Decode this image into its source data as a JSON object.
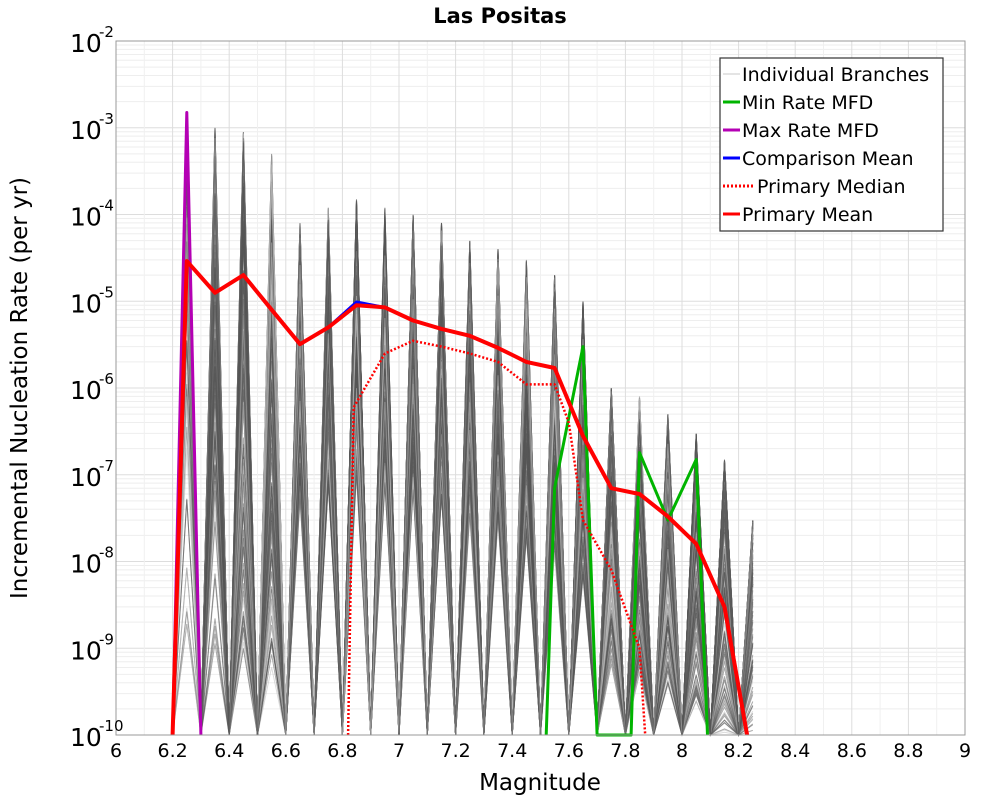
{
  "chart_data": {
    "type": "line",
    "title": "Las Positas",
    "xlabel": "Magnitude",
    "ylabel": "Incremental Nucleation Rate (per yr)",
    "xlim": [
      6,
      9
    ],
    "ylim": [
      1e-10,
      0.01
    ],
    "y_scale": "log",
    "grid": true,
    "legend_position": "top-right",
    "x_ticks": [
      "6",
      "6.2",
      "6.4",
      "6.6",
      "6.8",
      "7",
      "7.2",
      "7.4",
      "7.6",
      "7.8",
      "8",
      "8.2",
      "8.4",
      "8.6",
      "8.8",
      "9"
    ],
    "y_tick_exponents": [
      "-10",
      "-9",
      "-8",
      "-7",
      "-6",
      "-5",
      "-4",
      "-3",
      "-2"
    ],
    "y_tick_base": "10",
    "branch_peaks": {
      "magnitudes": [
        6.25,
        6.35,
        6.45,
        6.55,
        6.65,
        6.75,
        6.85,
        6.95,
        7.05,
        7.15,
        7.25,
        7.35,
        7.45,
        7.55,
        7.65,
        7.75,
        7.85,
        7.95,
        8.05,
        8.15,
        8.25
      ],
      "max_rates": [
        0.0015,
        0.001,
        0.0009,
        0.0005,
        8e-05,
        0.00012,
        0.00015,
        0.00012,
        0.0001,
        8e-05,
        5e-05,
        4e-05,
        3e-05,
        2e-05,
        1e-05,
        1e-06,
        8e-07,
        5e-07,
        3e-07,
        1.5e-07,
        3e-08
      ]
    },
    "series": [
      {
        "name": "Individual Branches",
        "color": "#c8c8c8",
        "style": "solid"
      },
      {
        "name": "Min Rate MFD",
        "color": "#00b400",
        "style": "solid",
        "x": [
          7.52,
          7.55,
          7.65,
          7.7,
          7.82,
          7.85,
          7.95,
          8.05,
          8.09
        ],
        "y": [
          1e-10,
          7e-08,
          3e-06,
          1e-10,
          1e-10,
          1.8e-07,
          3e-08,
          1.5e-07,
          1e-10
        ]
      },
      {
        "name": "Max Rate MFD",
        "color": "#b400b4",
        "style": "solid",
        "x": [
          6.2,
          6.25,
          6.3
        ],
        "y": [
          1e-10,
          0.0015,
          1e-10
        ]
      },
      {
        "name": "Comparison Mean",
        "color": "#0000ff",
        "style": "solid",
        "x": [
          6.2,
          6.25,
          6.35,
          6.45,
          6.55,
          6.65,
          6.75,
          6.85,
          6.95,
          7.05,
          7.15,
          7.25,
          7.35,
          7.45,
          7.55,
          7.65,
          7.75,
          7.85,
          7.95,
          8.05,
          8.15,
          8.23
        ],
        "y": [
          1e-10,
          2.9e-05,
          1.25e-05,
          2e-05,
          8e-06,
          3.2e-06,
          5e-06,
          9.8e-06,
          8.5e-06,
          6e-06,
          4.8e-06,
          4e-06,
          2.9e-06,
          2e-06,
          1.7e-06,
          2.8e-07,
          7e-08,
          6e-08,
          3.3e-08,
          1.6e-08,
          3e-09,
          1e-10
        ]
      },
      {
        "name": "Primary Median",
        "color": "#ff0000",
        "style": "dotted",
        "x": [
          6.82,
          6.84,
          6.95,
          7.05,
          7.15,
          7.25,
          7.35,
          7.45,
          7.55,
          7.6,
          7.65,
          7.75,
          7.85,
          7.87
        ],
        "y": [
          1e-10,
          6e-07,
          2.5e-06,
          3.5e-06,
          3e-06,
          2.5e-06,
          2e-06,
          1.1e-06,
          1.1e-06,
          4e-07,
          3e-08,
          8e-09,
          1e-09,
          1e-10
        ]
      },
      {
        "name": "Primary Mean",
        "color": "#ff0000",
        "style": "solid",
        "x": [
          6.2,
          6.25,
          6.35,
          6.45,
          6.55,
          6.65,
          6.75,
          6.85,
          6.95,
          7.05,
          7.15,
          7.25,
          7.35,
          7.45,
          7.55,
          7.65,
          7.75,
          7.85,
          7.95,
          8.05,
          8.15,
          8.23
        ],
        "y": [
          1e-10,
          2.9e-05,
          1.25e-05,
          2e-05,
          8e-06,
          3.2e-06,
          5e-06,
          9e-06,
          8.5e-06,
          6e-06,
          4.8e-06,
          4e-06,
          2.9e-06,
          2e-06,
          1.7e-06,
          2.8e-07,
          7e-08,
          6e-08,
          3.3e-08,
          1.6e-08,
          3e-09,
          1e-10
        ]
      }
    ]
  }
}
